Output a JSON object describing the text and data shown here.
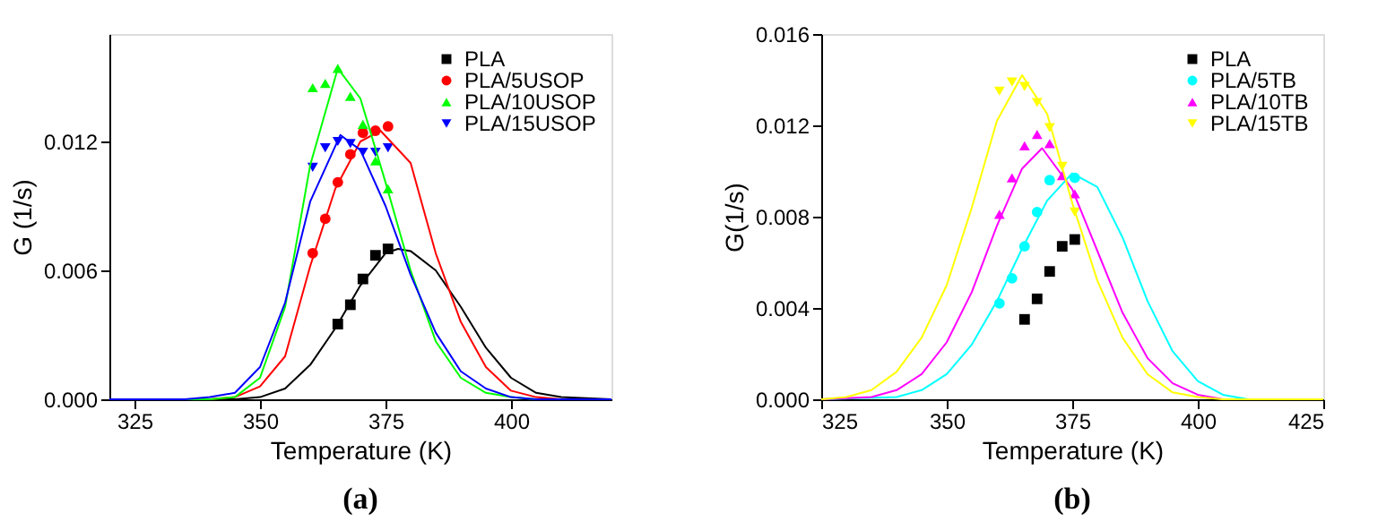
{
  "chart_data": [
    {
      "type": "scatter",
      "xlabel": "Temperature (K)",
      "ylabel": "G (1/s)",
      "annotations": [
        "(a)"
      ],
      "xlim": [
        320,
        420
      ],
      "xticks": [
        325,
        350,
        375,
        400
      ],
      "ylim": [
        0,
        0.017
      ],
      "yticks": [
        {
          "value": 0,
          "label": "0.000"
        },
        {
          "value": 0.006,
          "label": "0.006"
        },
        {
          "value": 0.012,
          "label": "0.012"
        }
      ],
      "grid": false,
      "legend": "top right",
      "series": [
        {
          "name": "PLA",
          "marker": "square",
          "color": "#000000",
          "x": [
            365.5,
            368,
            370.5,
            373,
            375.5
          ],
          "values": [
            0.0035,
            0.0044,
            0.0056,
            0.0067,
            0.007
          ]
        },
        {
          "name": "PLA/5USOP",
          "marker": "circle",
          "color": "#ff0000",
          "x": [
            360.5,
            363,
            365.5,
            368,
            370.5,
            373,
            375.5
          ],
          "values": [
            0.0068,
            0.0084,
            0.0101,
            0.0114,
            0.0124,
            0.0125,
            0.0127
          ]
        },
        {
          "name": "PLA/10USOP",
          "marker": "triangle",
          "color": "#00ff00",
          "x": [
            360.5,
            363,
            365.5,
            368,
            370.5,
            373,
            375.5
          ],
          "values": [
            0.0145,
            0.0147,
            0.0154,
            0.0141,
            0.0128,
            0.0111,
            0.0098
          ]
        },
        {
          "name": "PLA/15USOP",
          "marker": "triangle-down",
          "color": "#0000ff",
          "x": [
            360.5,
            363,
            365.5,
            368,
            370.5,
            373,
            375.5
          ],
          "values": [
            0.0108,
            0.0117,
            0.012,
            0.0119,
            0.0115,
            0.0115,
            0.0117
          ]
        },
        {
          "type": "line",
          "color": "#000000",
          "x": [
            320,
            345,
            350,
            355,
            360,
            365,
            370,
            375,
            377.5,
            380,
            385,
            390,
            395,
            400,
            405,
            410,
            420
          ],
          "values": [
            0,
            0,
            0.0001,
            0.0005,
            0.0016,
            0.0033,
            0.0053,
            0.0068,
            0.007,
            0.0069,
            0.006,
            0.0043,
            0.0024,
            0.001,
            0.0003,
            0.0001,
            0
          ]
        },
        {
          "type": "line",
          "color": "#ff0000",
          "x": [
            320,
            340,
            345,
            350,
            355,
            360,
            365,
            370,
            374,
            380,
            385,
            390,
            395,
            400,
            405,
            410,
            420
          ],
          "values": [
            0,
            0,
            0.0001,
            0.0006,
            0.002,
            0.0062,
            0.0098,
            0.012,
            0.0125,
            0.011,
            0.0068,
            0.0036,
            0.0015,
            0.0004,
            0.0001,
            0,
            0
          ]
        },
        {
          "type": "line",
          "color": "#00ff00",
          "x": [
            320,
            335,
            340,
            345,
            350,
            355,
            360,
            365.5,
            370,
            375,
            380,
            385,
            390,
            395,
            400,
            405,
            420
          ],
          "values": [
            0,
            0,
            0,
            0.0001,
            0.001,
            0.0043,
            0.0109,
            0.0154,
            0.014,
            0.0101,
            0.006,
            0.0027,
            0.001,
            0.0003,
            0.0001,
            0,
            0
          ]
        },
        {
          "type": "line",
          "color": "#0000ff",
          "x": [
            320,
            335,
            340,
            345,
            350,
            355,
            360,
            366,
            370,
            375,
            380,
            385,
            390,
            395,
            400,
            405,
            420
          ],
          "values": [
            0,
            0,
            0.0001,
            0.0003,
            0.0015,
            0.0045,
            0.0092,
            0.0123,
            0.0116,
            0.009,
            0.0058,
            0.0031,
            0.0013,
            0.0005,
            0.0001,
            0,
            0
          ]
        }
      ]
    },
    {
      "type": "scatter",
      "xlabel": "Temperature (K)",
      "ylabel": "G(1/s)",
      "annotations": [
        "(b)"
      ],
      "xlim": [
        325,
        425
      ],
      "xticks": [
        325,
        350,
        375,
        400,
        425
      ],
      "ylim": [
        0,
        0.016
      ],
      "yticks": [
        {
          "value": 0,
          "label": "0.000"
        },
        {
          "value": 0.004,
          "label": "0.004"
        },
        {
          "value": 0.008,
          "label": "0.008"
        },
        {
          "value": 0.012,
          "label": "0.012"
        },
        {
          "value": 0.016,
          "label": "0.016"
        }
      ],
      "grid": false,
      "legend": "top right",
      "series": [
        {
          "name": "PLA",
          "marker": "square",
          "color": "#000000",
          "x": [
            365.5,
            368,
            370.5,
            373,
            375.5
          ],
          "values": [
            0.0035,
            0.0044,
            0.0056,
            0.0067,
            0.007
          ]
        },
        {
          "name": "PLA/5TB",
          "marker": "circle",
          "color": "#00ffff",
          "x": [
            360.5,
            363,
            365.5,
            368,
            370.5,
            373,
            375.5
          ],
          "values": [
            0.0042,
            0.0053,
            0.0067,
            0.0082,
            0.0096,
            null,
            0.0097
          ]
        },
        {
          "name": "PLA/10TB",
          "marker": "triangle",
          "color": "#ff00ff",
          "x": [
            360.5,
            363,
            365.5,
            368,
            370.5,
            373,
            375.5
          ],
          "values": [
            0.0081,
            0.0097,
            0.0111,
            0.0116,
            0.0112,
            0.0098,
            0.009
          ]
        },
        {
          "name": "PLA/15TB",
          "marker": "triangle-down",
          "color": "#ffff00",
          "x": [
            360.5,
            363,
            365.5,
            368,
            370.5,
            373,
            375.5
          ],
          "values": [
            0.0135,
            0.0139,
            0.0137,
            0.013,
            0.0119,
            0.0102,
            0.0082
          ]
        },
        {
          "type": "line",
          "color": "#00ffff",
          "x": [
            325,
            340,
            345,
            350,
            355,
            360,
            365,
            370,
            375,
            380,
            385,
            390,
            395,
            400,
            405,
            410,
            425
          ],
          "values": [
            0,
            0.0001,
            0.0004,
            0.0011,
            0.0024,
            0.0043,
            0.0066,
            0.0087,
            0.0099,
            0.0093,
            0.0071,
            0.0043,
            0.0021,
            0.0008,
            0.0002,
            0,
            0
          ]
        },
        {
          "type": "line",
          "color": "#ff00ff",
          "x": [
            325,
            335,
            340,
            345,
            350,
            355,
            360,
            365,
            369,
            375,
            380,
            385,
            390,
            395,
            400,
            405,
            425
          ],
          "values": [
            0,
            0.0001,
            0.0004,
            0.0011,
            0.0025,
            0.0047,
            0.0076,
            0.0101,
            0.011,
            0.0092,
            0.0065,
            0.0038,
            0.0018,
            0.0007,
            0.0002,
            0,
            0
          ]
        },
        {
          "type": "line",
          "color": "#ffff00",
          "x": [
            325,
            330,
            335,
            340,
            345,
            350,
            355,
            360,
            365,
            370,
            375,
            380,
            385,
            390,
            395,
            400,
            405,
            425
          ],
          "values": [
            0,
            0.0001,
            0.0004,
            0.0012,
            0.0027,
            0.005,
            0.0084,
            0.0122,
            0.0142,
            0.0125,
            0.0086,
            0.0052,
            0.0027,
            0.0011,
            0.0003,
            0.0001,
            0,
            0
          ]
        }
      ]
    }
  ]
}
